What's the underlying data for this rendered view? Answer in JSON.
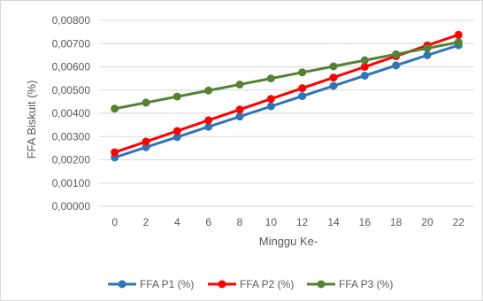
{
  "chart_data": {
    "type": "line",
    "title": "",
    "xlabel": "Minggu Ke-",
    "ylabel": "FFA Biskuit (%)",
    "x": [
      0,
      2,
      4,
      6,
      8,
      10,
      12,
      14,
      16,
      18,
      20,
      22
    ],
    "x_tick_labels": [
      "0",
      "2",
      "4",
      "6",
      "8",
      "10",
      "12",
      "14",
      "16",
      "18",
      "20",
      "22"
    ],
    "ylim": [
      0,
      0.008
    ],
    "y_ticks": [
      0,
      0.001,
      0.002,
      0.003,
      0.004,
      0.005,
      0.006,
      0.007,
      0.008
    ],
    "y_tick_labels": [
      "0,00000",
      "0,00100",
      "0,00200",
      "0,00300",
      "0,00400",
      "0,00500",
      "0,00600",
      "0,00700",
      "0,00800"
    ],
    "grid": "horizontal",
    "legend_position": "bottom",
    "series": [
      {
        "name": "FFA P1 (%)",
        "color": "#2e75b6",
        "values": [
          0.0021,
          0.00254,
          0.00298,
          0.00342,
          0.00386,
          0.0043,
          0.00474,
          0.00518,
          0.00562,
          0.00606,
          0.0065,
          0.00693
        ]
      },
      {
        "name": "FFA P2 (%)",
        "color": "#ff0000",
        "values": [
          0.00232,
          0.00278,
          0.00324,
          0.0037,
          0.00416,
          0.00462,
          0.00508,
          0.00554,
          0.006,
          0.00646,
          0.00692,
          0.00738
        ]
      },
      {
        "name": "FFA P3 (%)",
        "color": "#548235",
        "values": [
          0.0042,
          0.00446,
          0.00472,
          0.00498,
          0.00524,
          0.0055,
          0.00576,
          0.00602,
          0.00628,
          0.00654,
          0.0068,
          0.00706
        ]
      }
    ]
  }
}
